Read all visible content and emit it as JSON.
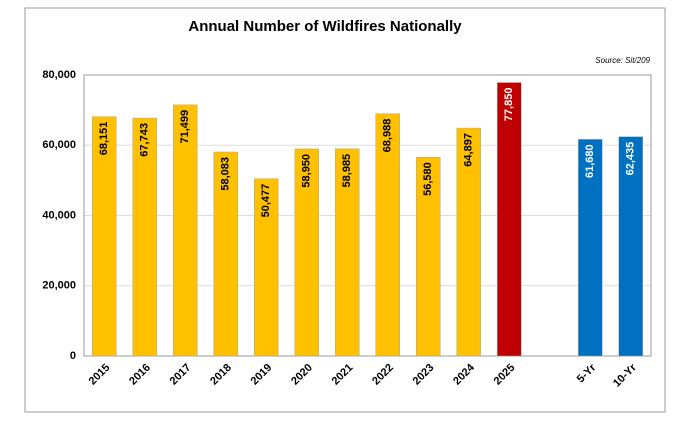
{
  "chart_data": {
    "type": "bar",
    "title": "Annual Number of Wildfires Nationally",
    "annotation": "Source: Sit/209",
    "categories": [
      "2015",
      "2016",
      "2017",
      "2018",
      "2019",
      "2020",
      "2021",
      "2022",
      "2023",
      "2024",
      "2025",
      null,
      "5-Yr",
      "10-Yr"
    ],
    "values": [
      68151,
      67743,
      71499,
      58083,
      50477,
      58950,
      58985,
      68988,
      56580,
      64897,
      77850,
      null,
      61680,
      62435
    ],
    "value_labels": [
      "68,151",
      "67,743",
      "71,499",
      "58,083",
      "50,477",
      "58,950",
      "58,985",
      "68,988",
      "56,580",
      "64,897",
      "77,850",
      null,
      "61,680",
      "62,435"
    ],
    "colors": [
      "#ffc000",
      "#ffc000",
      "#ffc000",
      "#ffc000",
      "#ffc000",
      "#ffc000",
      "#ffc000",
      "#ffc000",
      "#ffc000",
      "#ffc000",
      "#c00000",
      null,
      "#0070c0",
      "#0070c0"
    ],
    "ylim": [
      0,
      80000
    ],
    "yticks": [
      0,
      {
        "value": 20000,
        "label": "20,000"
      },
      {
        "value": 40000,
        "label": "40,000"
      },
      {
        "value": 60000,
        "label": "60,000"
      },
      {
        "value": 80000,
        "label": "80,000"
      }
    ],
    "grid": true
  }
}
